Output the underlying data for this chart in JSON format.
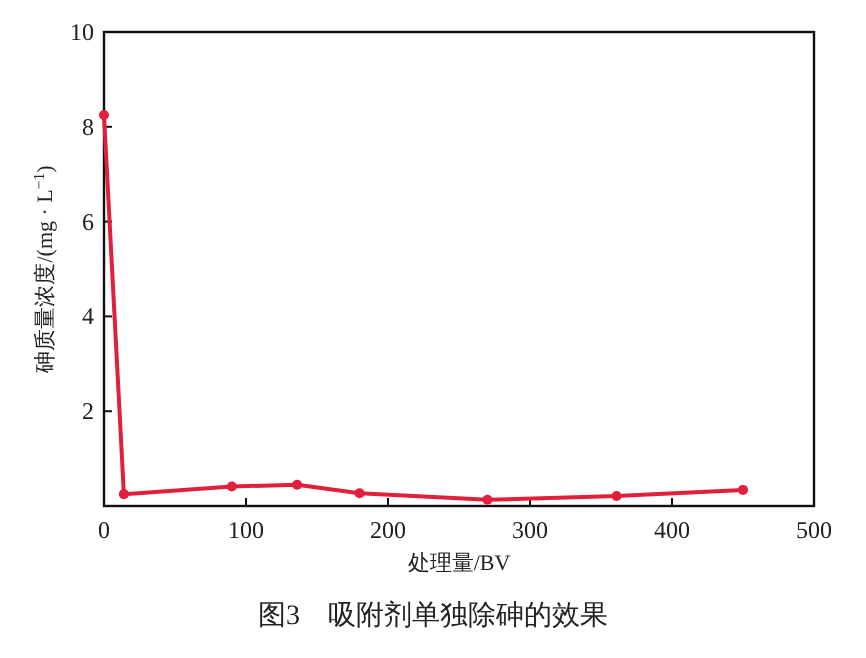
{
  "chart_data": {
    "type": "line",
    "xlabel": "处理量/BV",
    "ylabel": "砷质量浓度/(mg · L$^{−1}$)",
    "annotations": [
      "图3　吸附剂单独除砷的效果"
    ],
    "x": [
      0,
      14,
      90,
      136,
      180,
      270,
      361,
      450
    ],
    "series": [
      {
        "color": "#e0203c",
        "values": [
          8.25,
          0.25,
          0.41,
          0.45,
          0.27,
          0.13,
          0.21,
          0.34
        ]
      }
    ],
    "xlim": [
      0,
      500
    ],
    "xticks": [
      0,
      100,
      200,
      300,
      400,
      500
    ],
    "ylim": [
      0,
      10
    ],
    "yticks": [
      2,
      4,
      6,
      8,
      10
    ],
    "marker": "circle",
    "line_style": "solid",
    "grid": false
  }
}
